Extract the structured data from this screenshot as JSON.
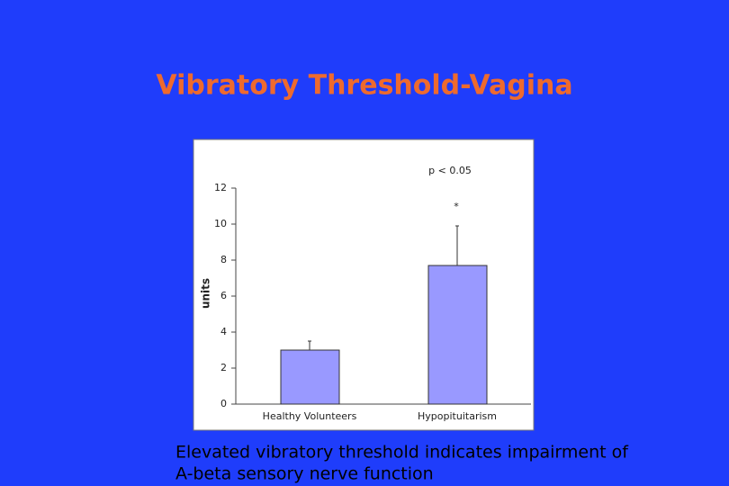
{
  "chart_data": {
    "type": "bar",
    "title": "Vibratory Threshold-Vagina",
    "annotations": [
      "p < 0.05",
      "*"
    ],
    "y_label": "units",
    "categories": [
      "Healthy Volunteers",
      "Hypopituitarism"
    ],
    "values": [
      3,
      7.7
    ],
    "errors": [
      0.5,
      2.2
    ],
    "color": "#9999ff",
    "ylim": [
      0,
      12
    ],
    "yticks": [
      0,
      2,
      4,
      6,
      8,
      10,
      12
    ]
  },
  "caption": [
    "Elevated vibratory threshold indicates impairment of",
    "A-beta sensory nerve function"
  ]
}
